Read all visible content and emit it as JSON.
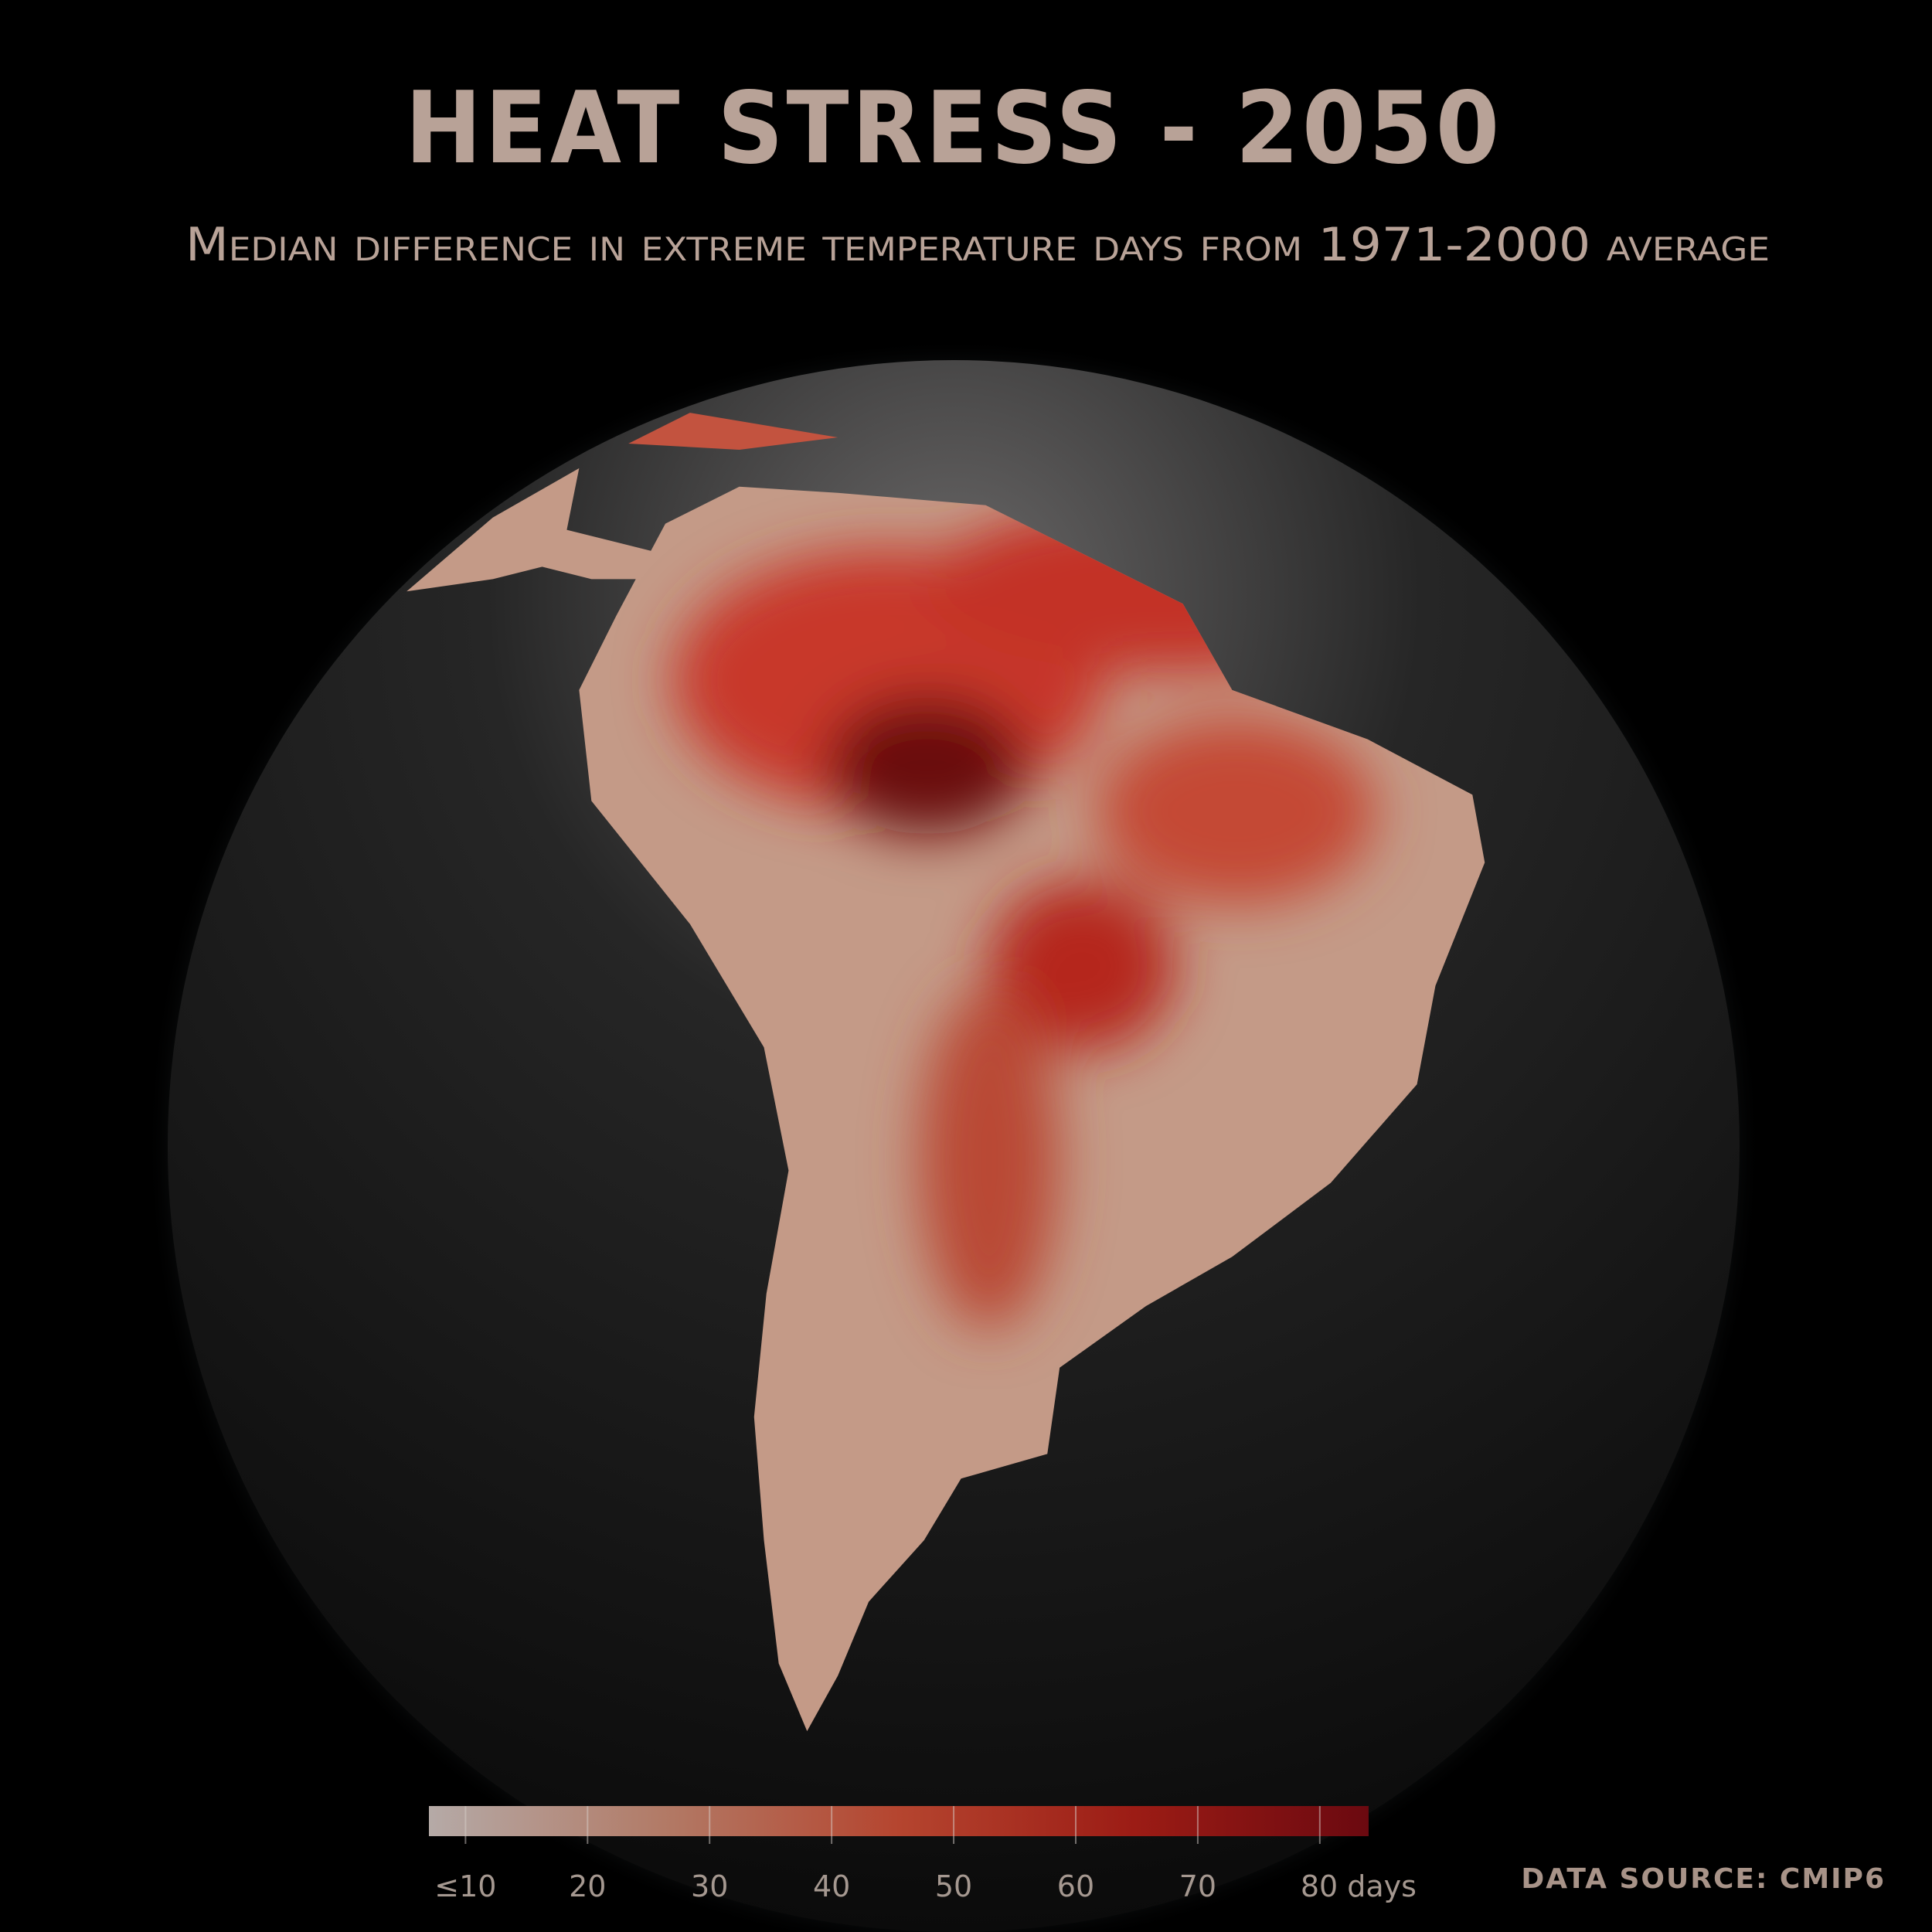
{
  "title": "HEAT STRESS - 2050",
  "subtitle": "Median difference in extreme temperature days from 1971-2000 average",
  "legend": {
    "lim": [
      7,
      84
    ],
    "ticks": [
      {
        "value": 10,
        "label": "≤10"
      },
      20,
      30,
      40,
      50,
      60,
      70,
      {
        "value": 80,
        "label": "80 days"
      }
    ],
    "colors": [
      "#b5aaa7",
      "#b27a66",
      "#b5452f",
      "#9c1c15",
      "#6b0910"
    ]
  },
  "source": "DATA SOURCE: CMIP6"
}
